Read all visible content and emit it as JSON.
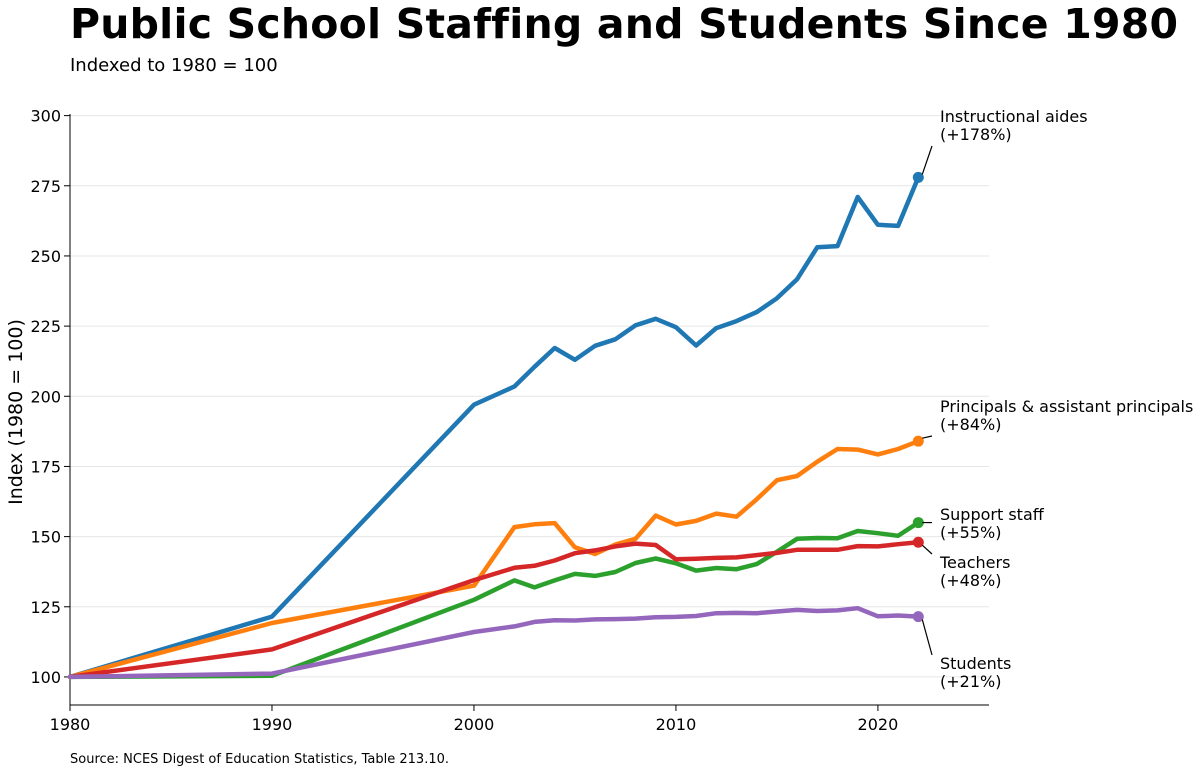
{
  "title": "Public School Staffing and Students Since 1980",
  "subtitle": "Indexed to 1980 = 100",
  "source": "Source: NCES Digest of Education Statistics, Table 213.10.",
  "chart_data": {
    "type": "line",
    "ylabel": "Index (1980 = 100)",
    "xlabel": "",
    "xlim": [
      1980,
      2025.5
    ],
    "ylim": [
      90,
      302
    ],
    "x_ticks": [
      1980,
      1990,
      2000,
      2010,
      2020
    ],
    "y_ticks": [
      100,
      125,
      150,
      175,
      200,
      225,
      250,
      275,
      300
    ],
    "grid": "horizontal",
    "legend": "direct labels at line ends",
    "series": [
      {
        "name": "Instructional aides",
        "change_label": "(+178%)",
        "color": "#1f77b4",
        "x": [
          1980,
          1990,
          2000,
          2002,
          2003,
          2004,
          2005,
          2006,
          2007,
          2008,
          2009,
          2010,
          2011,
          2012,
          2013,
          2014,
          2015,
          2016,
          2017,
          2018,
          2019,
          2020,
          2021,
          2022
        ],
        "y": [
          100,
          121.5,
          197,
          203.5,
          210.5,
          217.2,
          213,
          218,
          220.3,
          225.3,
          227.6,
          224.6,
          218.1,
          224.3,
          226.8,
          230,
          234.9,
          241.7,
          253.1,
          253.5,
          271,
          261.1,
          260.7,
          278
        ]
      },
      {
        "name": "Principals & assistant principals",
        "change_label": "(+84%)",
        "color": "#ff7f0e",
        "x": [
          1980,
          1990,
          2000,
          2002,
          2003,
          2004,
          2005,
          2006,
          2007,
          2008,
          2009,
          2010,
          2011,
          2012,
          2013,
          2014,
          2015,
          2016,
          2017,
          2018,
          2019,
          2020,
          2021,
          2022
        ],
        "y": [
          100,
          119.2,
          132.5,
          153.4,
          154.4,
          154.8,
          146.2,
          143.8,
          147.2,
          149.2,
          157.5,
          154.3,
          155.6,
          158.2,
          157.1,
          163.3,
          170.1,
          171.6,
          176.7,
          181.2,
          181,
          179.3,
          181.2,
          184
        ]
      },
      {
        "name": "Support staff",
        "change_label": "(+55%)",
        "color": "#2ca02c",
        "x": [
          1980,
          1990,
          2000,
          2002,
          2003,
          2004,
          2005,
          2006,
          2007,
          2008,
          2009,
          2010,
          2011,
          2012,
          2013,
          2014,
          2015,
          2016,
          2017,
          2018,
          2019,
          2020,
          2021,
          2022
        ],
        "y": [
          100,
          100.4,
          127.5,
          134.4,
          131.9,
          134.4,
          136.7,
          136,
          137.4,
          140.6,
          142.2,
          140.5,
          137.9,
          138.8,
          138.4,
          140.2,
          144.6,
          149.2,
          149.5,
          149.4,
          152,
          151.2,
          150.3,
          155
        ]
      },
      {
        "name": "Teachers",
        "change_label": "(+48%)",
        "color": "#d62728",
        "x": [
          1980,
          1990,
          2000,
          2002,
          2003,
          2004,
          2005,
          2006,
          2007,
          2008,
          2009,
          2010,
          2011,
          2012,
          2013,
          2014,
          2015,
          2016,
          2017,
          2018,
          2019,
          2020,
          2021,
          2022
        ],
        "y": [
          100,
          109.8,
          134.5,
          138.9,
          139.6,
          141.5,
          144.1,
          145.1,
          146.5,
          147.5,
          147,
          141.9,
          142.1,
          142.4,
          142.6,
          143.4,
          144.2,
          145.3,
          145.3,
          145.3,
          146.6,
          146.5,
          147.3,
          148
        ]
      },
      {
        "name": "Students",
        "change_label": "(+21%)",
        "color": "#9467bd",
        "x": [
          1980,
          1990,
          2000,
          2002,
          2003,
          2004,
          2005,
          2006,
          2007,
          2008,
          2009,
          2010,
          2011,
          2012,
          2013,
          2014,
          2015,
          2016,
          2017,
          2018,
          2019,
          2020,
          2021,
          2022
        ],
        "y": [
          100,
          101.2,
          116,
          118,
          119.6,
          120.2,
          120.1,
          120.5,
          120.6,
          120.8,
          121.3,
          121.4,
          121.7,
          122.7,
          122.8,
          122.7,
          123.3,
          123.9,
          123.5,
          123.7,
          124.5,
          121.6,
          121.9,
          121.5
        ]
      }
    ]
  }
}
